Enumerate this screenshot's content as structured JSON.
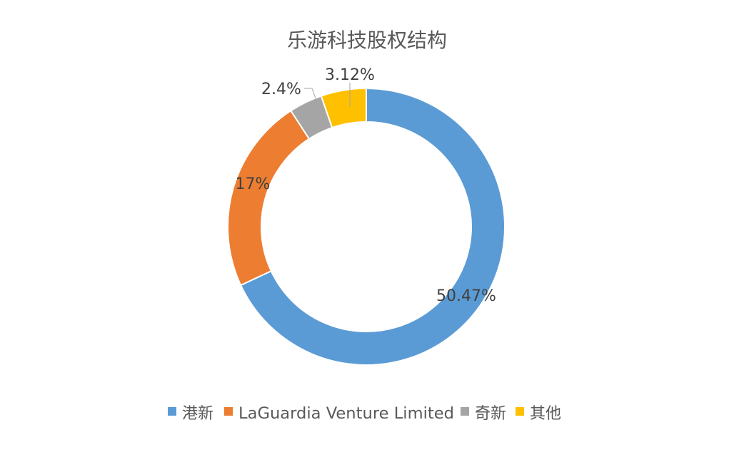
{
  "chart_data": {
    "type": "pie",
    "variant": "donut",
    "title": "乐游科技股权结构",
    "legend_position": "bottom",
    "slices": [
      {
        "name": "港新",
        "label": "50.47%",
        "color": "#5B9BD5"
      },
      {
        "name": "LaGuardia Venture Limited",
        "label": "17%",
        "color": "#ED7D31"
      },
      {
        "name": "奇新",
        "label": "2.4%",
        "color": "#A5A5A5"
      },
      {
        "name": "其他",
        "label": "3.12%",
        "color": "#FFC000"
      }
    ],
    "slice_angles": [
      {
        "start": 0,
        "end": 245
      },
      {
        "start": 245,
        "end": 327
      },
      {
        "start": 327,
        "end": 341
      },
      {
        "start": 341,
        "end": 360
      }
    ]
  }
}
